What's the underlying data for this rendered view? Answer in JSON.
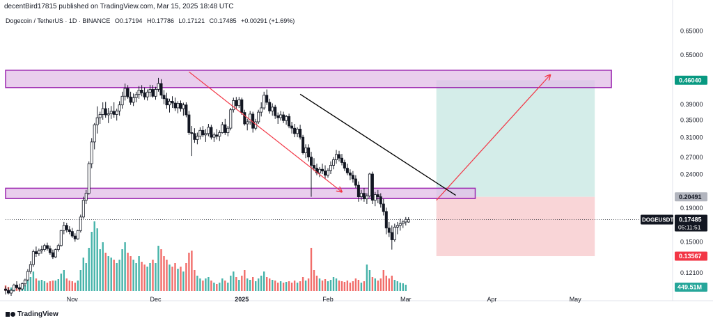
{
  "header": {
    "published": "decentBird17815 published on TradingView.com, Mar 15, 2025 18:48 UTC",
    "symbol": "Dogecoin / TetherUS · 1D · BINANCE",
    "open": "O0.17194",
    "high": "H0.17786",
    "low": "L0.17121",
    "close": "C0.17485",
    "change": "+0.00291 (+1.69%)"
  },
  "footer": {
    "brand": "TradingView"
  },
  "colors": {
    "up": "#26a69a",
    "down": "#ef5350",
    "zone_fill": "#e1bee7",
    "zone_border": "#9c27b0",
    "target_fill": "#d4ede9",
    "stop_fill": "#f9d5d7",
    "arrow": "#f23645",
    "trend": "#000000"
  },
  "chart_data": {
    "type": "candlestick",
    "title": "Dogecoin / TetherUS · 1D · BINANCE",
    "xlabel": "",
    "ylabel": "",
    "scale": "log",
    "ylim": [
      0.1055,
      0.669
    ],
    "y_ticks": [
      "0.65000",
      "0.55000",
      "0.46040",
      "0.39000",
      "0.35000",
      "0.31000",
      "0.27000",
      "0.24000",
      "0.20491",
      "0.19000",
      "0.17485",
      "0.15000",
      "0.13567",
      "0.12100"
    ],
    "y_tick_values": [
      0.65,
      0.55,
      0.4604,
      0.39,
      0.35,
      0.31,
      0.27,
      0.24,
      0.20491,
      0.19,
      0.17485,
      0.15,
      0.13567,
      0.121
    ],
    "x_ticks": [
      "Nov",
      "Dec",
      "2025",
      "Feb",
      "Mar",
      "Apr",
      "May"
    ],
    "x_tick_days": [
      24,
      54,
      85,
      116,
      144,
      175,
      205
    ],
    "x_range_days": [
      0,
      231
    ],
    "candles_first_date": "2024-10-09",
    "candles": [
      [
        0.108,
        0.11,
        0.104,
        0.107
      ],
      [
        0.107,
        0.109,
        0.104,
        0.105
      ],
      [
        0.105,
        0.108,
        0.103,
        0.107
      ],
      [
        0.107,
        0.112,
        0.106,
        0.111
      ],
      [
        0.111,
        0.114,
        0.108,
        0.109
      ],
      [
        0.109,
        0.112,
        0.106,
        0.108
      ],
      [
        0.108,
        0.113,
        0.107,
        0.112
      ],
      [
        0.112,
        0.116,
        0.11,
        0.115
      ],
      [
        0.115,
        0.124,
        0.114,
        0.122
      ],
      [
        0.122,
        0.131,
        0.12,
        0.128
      ],
      [
        0.128,
        0.142,
        0.126,
        0.14
      ],
      [
        0.14,
        0.145,
        0.135,
        0.138
      ],
      [
        0.138,
        0.143,
        0.136,
        0.141
      ],
      [
        0.141,
        0.146,
        0.138,
        0.142
      ],
      [
        0.142,
        0.148,
        0.14,
        0.146
      ],
      [
        0.146,
        0.149,
        0.141,
        0.143
      ],
      [
        0.143,
        0.146,
        0.137,
        0.139
      ],
      [
        0.139,
        0.142,
        0.133,
        0.135
      ],
      [
        0.135,
        0.143,
        0.134,
        0.142
      ],
      [
        0.142,
        0.148,
        0.14,
        0.146
      ],
      [
        0.146,
        0.163,
        0.145,
        0.162
      ],
      [
        0.162,
        0.172,
        0.158,
        0.168
      ],
      [
        0.168,
        0.171,
        0.16,
        0.163
      ],
      [
        0.163,
        0.167,
        0.158,
        0.161
      ],
      [
        0.161,
        0.165,
        0.154,
        0.156
      ],
      [
        0.156,
        0.159,
        0.15,
        0.153
      ],
      [
        0.153,
        0.163,
        0.152,
        0.162
      ],
      [
        0.162,
        0.181,
        0.16,
        0.178
      ],
      [
        0.178,
        0.205,
        0.176,
        0.2
      ],
      [
        0.2,
        0.215,
        0.195,
        0.21
      ],
      [
        0.21,
        0.262,
        0.208,
        0.258
      ],
      [
        0.258,
        0.308,
        0.25,
        0.3
      ],
      [
        0.3,
        0.342,
        0.285,
        0.338
      ],
      [
        0.338,
        0.384,
        0.318,
        0.355
      ],
      [
        0.355,
        0.37,
        0.34,
        0.363
      ],
      [
        0.363,
        0.395,
        0.35,
        0.378
      ],
      [
        0.378,
        0.396,
        0.355,
        0.362
      ],
      [
        0.362,
        0.38,
        0.342,
        0.365
      ],
      [
        0.365,
        0.385,
        0.352,
        0.371
      ],
      [
        0.371,
        0.395,
        0.355,
        0.363
      ],
      [
        0.363,
        0.378,
        0.348,
        0.372
      ],
      [
        0.372,
        0.398,
        0.36,
        0.388
      ],
      [
        0.388,
        0.425,
        0.378,
        0.412
      ],
      [
        0.412,
        0.45,
        0.4,
        0.435
      ],
      [
        0.435,
        0.445,
        0.405,
        0.41
      ],
      [
        0.41,
        0.425,
        0.388,
        0.395
      ],
      [
        0.395,
        0.42,
        0.385,
        0.408
      ],
      [
        0.408,
        0.425,
        0.395,
        0.417
      ],
      [
        0.417,
        0.442,
        0.405,
        0.43
      ],
      [
        0.43,
        0.445,
        0.412,
        0.422
      ],
      [
        0.422,
        0.438,
        0.402,
        0.41
      ],
      [
        0.41,
        0.432,
        0.4,
        0.424
      ],
      [
        0.424,
        0.446,
        0.41,
        0.432
      ],
      [
        0.432,
        0.445,
        0.408,
        0.412
      ],
      [
        0.412,
        0.44,
        0.402,
        0.432
      ],
      [
        0.432,
        0.468,
        0.425,
        0.45
      ],
      [
        0.45,
        0.464,
        0.405,
        0.415
      ],
      [
        0.415,
        0.43,
        0.39,
        0.405
      ],
      [
        0.405,
        0.422,
        0.378,
        0.388
      ],
      [
        0.388,
        0.405,
        0.368,
        0.398
      ],
      [
        0.398,
        0.412,
        0.38,
        0.393
      ],
      [
        0.393,
        0.408,
        0.372,
        0.38
      ],
      [
        0.38,
        0.398,
        0.366,
        0.392
      ],
      [
        0.392,
        0.4,
        0.37,
        0.378
      ],
      [
        0.378,
        0.394,
        0.36,
        0.388
      ],
      [
        0.388,
        0.395,
        0.356,
        0.362
      ],
      [
        0.362,
        0.372,
        0.315,
        0.32
      ],
      [
        0.32,
        0.335,
        0.272,
        0.318
      ],
      [
        0.318,
        0.33,
        0.298,
        0.305
      ],
      [
        0.305,
        0.32,
        0.295,
        0.312
      ],
      [
        0.312,
        0.332,
        0.305,
        0.325
      ],
      [
        0.325,
        0.335,
        0.31,
        0.315
      ],
      [
        0.315,
        0.328,
        0.3,
        0.318
      ],
      [
        0.318,
        0.34,
        0.312,
        0.332
      ],
      [
        0.332,
        0.338,
        0.305,
        0.31
      ],
      [
        0.31,
        0.32,
        0.3,
        0.315
      ],
      [
        0.315,
        0.328,
        0.305,
        0.312
      ],
      [
        0.312,
        0.325,
        0.302,
        0.32
      ],
      [
        0.32,
        0.345,
        0.318,
        0.338
      ],
      [
        0.338,
        0.352,
        0.315,
        0.32
      ],
      [
        0.32,
        0.335,
        0.312,
        0.33
      ],
      [
        0.33,
        0.38,
        0.325,
        0.375
      ],
      [
        0.375,
        0.408,
        0.368,
        0.4
      ],
      [
        0.4,
        0.41,
        0.378,
        0.386
      ],
      [
        0.386,
        0.41,
        0.38,
        0.402
      ],
      [
        0.402,
        0.408,
        0.362,
        0.368
      ],
      [
        0.368,
        0.375,
        0.336,
        0.34
      ],
      [
        0.34,
        0.352,
        0.325,
        0.345
      ],
      [
        0.345,
        0.372,
        0.338,
        0.364
      ],
      [
        0.364,
        0.37,
        0.32,
        0.33
      ],
      [
        0.33,
        0.352,
        0.325,
        0.345
      ],
      [
        0.345,
        0.375,
        0.34,
        0.369
      ],
      [
        0.369,
        0.395,
        0.358,
        0.38
      ],
      [
        0.38,
        0.425,
        0.375,
        0.415
      ],
      [
        0.415,
        0.432,
        0.388,
        0.395
      ],
      [
        0.395,
        0.405,
        0.365,
        0.372
      ],
      [
        0.372,
        0.392,
        0.36,
        0.382
      ],
      [
        0.382,
        0.388,
        0.352,
        0.36
      ],
      [
        0.36,
        0.368,
        0.34,
        0.355
      ],
      [
        0.355,
        0.372,
        0.348,
        0.362
      ],
      [
        0.362,
        0.37,
        0.342,
        0.348
      ],
      [
        0.348,
        0.362,
        0.338,
        0.358
      ],
      [
        0.358,
        0.365,
        0.33,
        0.335
      ],
      [
        0.335,
        0.345,
        0.318,
        0.33
      ],
      [
        0.33,
        0.34,
        0.31,
        0.318
      ],
      [
        0.318,
        0.332,
        0.31,
        0.328
      ],
      [
        0.328,
        0.338,
        0.305,
        0.31
      ],
      [
        0.31,
        0.315,
        0.275,
        0.278
      ],
      [
        0.278,
        0.295,
        0.268,
        0.288
      ],
      [
        0.288,
        0.295,
        0.262,
        0.27
      ],
      [
        0.27,
        0.28,
        0.205,
        0.255
      ],
      [
        0.255,
        0.268,
        0.245,
        0.25
      ],
      [
        0.25,
        0.258,
        0.238,
        0.242
      ],
      [
        0.242,
        0.252,
        0.235,
        0.248
      ],
      [
        0.248,
        0.258,
        0.24,
        0.245
      ],
      [
        0.245,
        0.255,
        0.232,
        0.238
      ],
      [
        0.238,
        0.25,
        0.234,
        0.246
      ],
      [
        0.246,
        0.262,
        0.24,
        0.255
      ],
      [
        0.255,
        0.27,
        0.248,
        0.265
      ],
      [
        0.265,
        0.284,
        0.258,
        0.275
      ],
      [
        0.275,
        0.282,
        0.262,
        0.268
      ],
      [
        0.268,
        0.276,
        0.255,
        0.26
      ],
      [
        0.26,
        0.265,
        0.245,
        0.25
      ],
      [
        0.25,
        0.258,
        0.238,
        0.242
      ],
      [
        0.242,
        0.248,
        0.23,
        0.238
      ],
      [
        0.238,
        0.245,
        0.226,
        0.232
      ],
      [
        0.232,
        0.238,
        0.218,
        0.222
      ],
      [
        0.222,
        0.228,
        0.198,
        0.205
      ],
      [
        0.205,
        0.215,
        0.2,
        0.21
      ],
      [
        0.21,
        0.218,
        0.198,
        0.202
      ],
      [
        0.202,
        0.21,
        0.195,
        0.206
      ],
      [
        0.206,
        0.242,
        0.204,
        0.24
      ],
      [
        0.24,
        0.244,
        0.195,
        0.2
      ],
      [
        0.2,
        0.212,
        0.192,
        0.208
      ],
      [
        0.208,
        0.215,
        0.196,
        0.205
      ],
      [
        0.205,
        0.21,
        0.19,
        0.195
      ],
      [
        0.195,
        0.202,
        0.18,
        0.185
      ],
      [
        0.185,
        0.19,
        0.158,
        0.165
      ],
      [
        0.165,
        0.172,
        0.155,
        0.16
      ],
      [
        0.16,
        0.168,
        0.142,
        0.152
      ],
      [
        0.152,
        0.17,
        0.15,
        0.166
      ],
      [
        0.166,
        0.172,
        0.158,
        0.168
      ],
      [
        0.168,
        0.176,
        0.162,
        0.17
      ],
      [
        0.17,
        0.174,
        0.165,
        0.172
      ],
      [
        0.172,
        0.178,
        0.168,
        0.175
      ],
      [
        0.17194,
        0.17786,
        0.17121,
        0.17485
      ]
    ],
    "volume_label": "449.51M",
    "volumes": [
      0.08,
      0.06,
      0.05,
      0.07,
      0.06,
      0.05,
      0.07,
      0.08,
      0.15,
      0.2,
      0.28,
      0.18,
      0.15,
      0.16,
      0.14,
      0.12,
      0.14,
      0.15,
      0.15,
      0.17,
      0.25,
      0.3,
      0.18,
      0.15,
      0.14,
      0.12,
      0.15,
      0.3,
      0.48,
      0.4,
      0.62,
      0.85,
      1.0,
      0.9,
      0.6,
      0.7,
      0.55,
      0.5,
      0.48,
      0.45,
      0.4,
      0.45,
      0.6,
      0.7,
      0.55,
      0.5,
      0.45,
      0.4,
      0.5,
      0.42,
      0.38,
      0.35,
      0.4,
      0.45,
      0.4,
      0.65,
      0.6,
      0.5,
      0.45,
      0.38,
      0.35,
      0.4,
      0.32,
      0.35,
      0.28,
      0.4,
      0.55,
      0.58,
      0.3,
      0.22,
      0.18,
      0.15,
      0.18,
      0.2,
      0.15,
      0.12,
      0.1,
      0.12,
      0.18,
      0.15,
      0.12,
      0.22,
      0.28,
      0.2,
      0.16,
      0.22,
      0.3,
      0.18,
      0.16,
      0.2,
      0.14,
      0.18,
      0.22,
      0.28,
      0.2,
      0.18,
      0.16,
      0.15,
      0.12,
      0.14,
      0.12,
      0.13,
      0.14,
      0.12,
      0.15,
      0.12,
      0.14,
      0.2,
      0.15,
      0.18,
      0.62,
      0.3,
      0.22,
      0.18,
      0.15,
      0.17,
      0.14,
      0.16,
      0.2,
      0.18,
      0.15,
      0.14,
      0.13,
      0.15,
      0.12,
      0.14,
      0.18,
      0.16,
      0.12,
      0.14,
      0.38,
      0.3,
      0.2,
      0.18,
      0.15,
      0.18,
      0.3,
      0.22,
      0.18,
      0.22,
      0.16,
      0.14,
      0.12,
      0.11,
      0.09
    ],
    "price_labels": {
      "target": "0.46040",
      "entry": "0.20491",
      "last_symbol": "DOGEUSDT",
      "last_price": "0.17485",
      "countdown": "05:11:51",
      "stop": "0.13567"
    },
    "annotations": {
      "resistance_zone": [
        0.4375,
        0.4935
      ],
      "support_zone": [
        0.2025,
        0.2175
      ],
      "resistance_zone_days": [
        0,
        218
      ],
      "support_zone_days": [
        0,
        169
      ],
      "position": {
        "from_day": 155,
        "to_day": 212,
        "target": 0.4604,
        "entry": 0.20491,
        "stop": 0.13567
      },
      "arrow_down": {
        "from": [
          66,
          0.488
        ],
        "to": [
          121,
          0.212
        ]
      },
      "arrow_up": {
        "from": [
          155,
          0.2
        ],
        "to": [
          196,
          0.478
        ]
      },
      "trendline": {
        "from": [
          106,
          0.418
        ],
        "to": [
          162,
          0.207
        ]
      }
    }
  }
}
